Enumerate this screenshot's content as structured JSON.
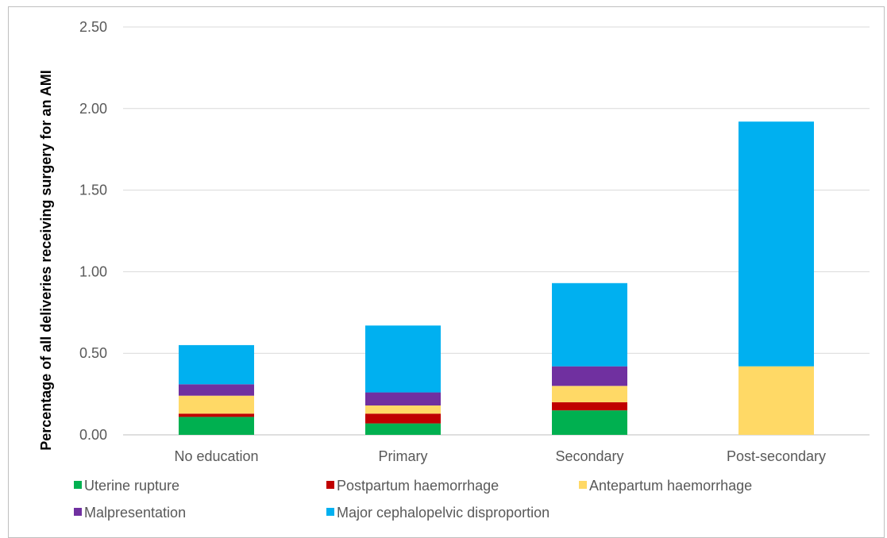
{
  "chart_data": {
    "type": "bar",
    "stacked": true,
    "categories": [
      "No education",
      "Primary",
      "Secondary",
      "Post-secondary"
    ],
    "ylabel": "Percentage of all deliveries receiving surgery for an AMI",
    "xlabel": "",
    "ylim": [
      0,
      2.5
    ],
    "yticks": [
      "0.00",
      "0.50",
      "1.00",
      "1.50",
      "2.00",
      "2.50"
    ],
    "grid": true,
    "legend_position": "bottom",
    "series": [
      {
        "name": "Uterine rupture",
        "color": "#00b050",
        "values": [
          0.11,
          0.07,
          0.15,
          0.0
        ]
      },
      {
        "name": "Postpartum haemorrhage",
        "color": "#c00000",
        "values": [
          0.02,
          0.06,
          0.05,
          0.0
        ]
      },
      {
        "name": "Antepartum haemorrhage",
        "color": "#ffd966",
        "values": [
          0.11,
          0.05,
          0.1,
          0.42
        ]
      },
      {
        "name": "Malpresentation",
        "color": "#7030a0",
        "values": [
          0.07,
          0.08,
          0.12,
          0.0
        ]
      },
      {
        "name": "Major cephalopelvic disproportion",
        "color": "#00b0f0",
        "values": [
          0.24,
          0.41,
          0.51,
          1.5
        ]
      }
    ]
  }
}
